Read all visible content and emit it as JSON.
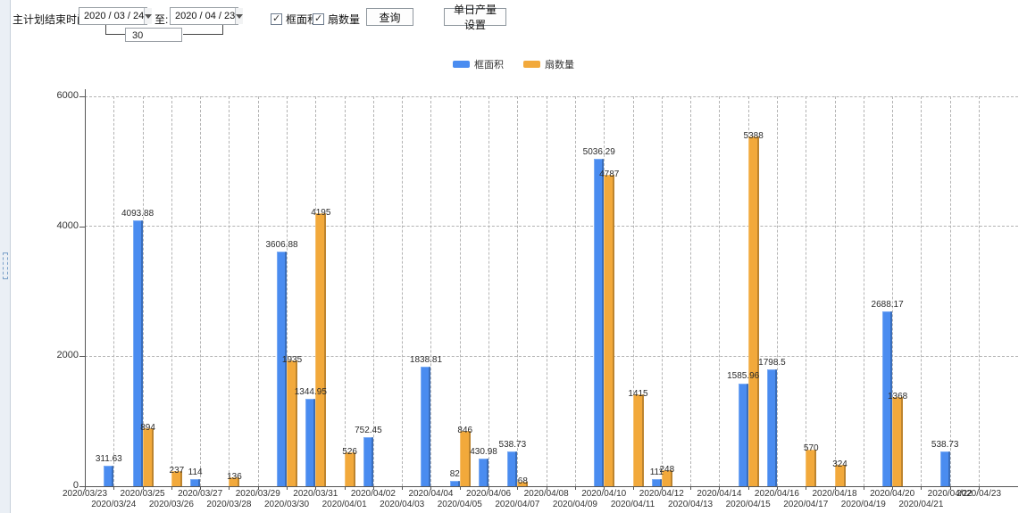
{
  "toolbar": {
    "label_end_time": "主计划结束时间:",
    "date_from": "2020 / 03 / 24",
    "label_to": "至:",
    "date_to": "2020 / 04 / 23",
    "days_value": "30",
    "checkbox_frame_area": "框面积",
    "checkbox_sash_count": "扇数量",
    "query_button": "查询",
    "daily_output_button": "单日产量设置"
  },
  "chart_data": {
    "type": "bar",
    "title": "",
    "xlabel": "",
    "ylabel": "",
    "ylim": [
      0,
      6000
    ],
    "yticks": [
      0,
      2000,
      4000,
      6000
    ],
    "grid": true,
    "legend_position": "top-center",
    "categories": [
      "2020/03/23",
      "2020/03/24",
      "2020/03/25",
      "2020/03/26",
      "2020/03/27",
      "2020/03/28",
      "2020/03/29",
      "2020/03/30",
      "2020/03/31",
      "2020/04/01",
      "2020/04/02",
      "2020/04/03",
      "2020/04/04",
      "2020/04/05",
      "2020/04/06",
      "2020/04/07",
      "2020/04/08",
      "2020/04/09",
      "2020/04/10",
      "2020/04/11",
      "2020/04/12",
      "2020/04/13",
      "2020/04/14",
      "2020/04/15",
      "2020/04/16",
      "2020/04/17",
      "2020/04/18",
      "2020/04/19",
      "2020/04/20",
      "2020/04/21",
      "2020/04/22",
      "2020/04/23"
    ],
    "series": [
      {
        "name": "框面积",
        "color": "#4a8cf0",
        "values": [
          null,
          311.63,
          4093.88,
          null,
          114,
          null,
          null,
          3606.88,
          1344.95,
          null,
          752.45,
          null,
          1838.81,
          82,
          430.98,
          538.73,
          null,
          null,
          5036.29,
          null,
          111,
          null,
          null,
          1585.96,
          1798.5,
          null,
          null,
          null,
          2688.17,
          null,
          538.73,
          null
        ]
      },
      {
        "name": "扇数量",
        "color": "#f2a93b",
        "values": [
          null,
          null,
          894,
          237,
          null,
          136,
          null,
          1935,
          4195,
          526,
          null,
          null,
          null,
          846,
          null,
          68,
          null,
          null,
          4787,
          1415,
          248,
          null,
          null,
          5388,
          null,
          570,
          324,
          null,
          1368,
          null,
          null,
          null
        ]
      }
    ]
  }
}
